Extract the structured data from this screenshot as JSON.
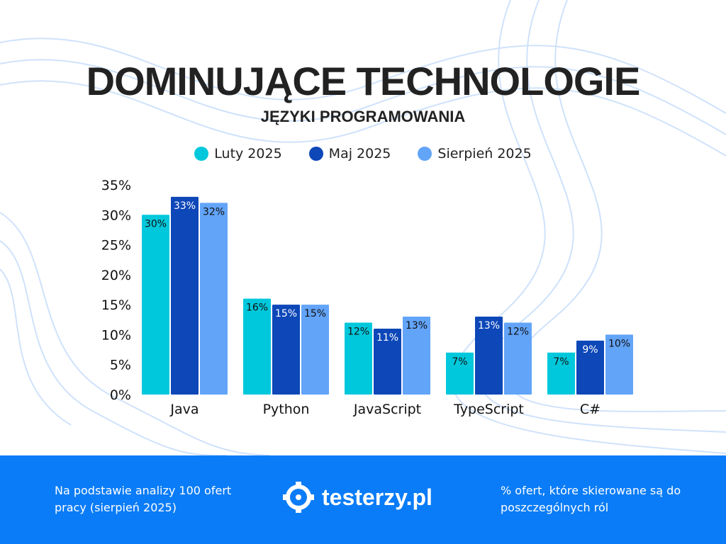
{
  "header": {
    "title": "DOMINUJĄCE TECHNOLOGIE",
    "subtitle": "JĘZYKI PROGRAMOWANIA"
  },
  "chart_data": {
    "type": "bar",
    "categories": [
      "Java",
      "Python",
      "JavaScript",
      "TypeScript",
      "C#"
    ],
    "series": [
      {
        "name": "Luty 2025",
        "color": "#00c8dc",
        "values": [
          30,
          16,
          12,
          7,
          7
        ]
      },
      {
        "name": "Maj 2025",
        "color": "#0d47b8",
        "values": [
          33,
          15,
          11,
          13,
          9
        ]
      },
      {
        "name": "Sierpień 2025",
        "color": "#62a4f8",
        "values": [
          32,
          15,
          13,
          12,
          10
        ]
      }
    ],
    "ylim": [
      0,
      35
    ],
    "yticks": [
      "0%",
      "5%",
      "10%",
      "15%",
      "20%",
      "25%",
      "30%",
      "35%"
    ],
    "data_label_suffix": "%",
    "legend_position": "top",
    "grid": false
  },
  "footer": {
    "left_text": "Na podstawie analizy 100 ofert pracy (sierpień 2025)",
    "brand": "testerzy.pl",
    "right_text": "% ofert, które skierowane są do poszczególnych ról",
    "background": "#0a7cf7"
  }
}
